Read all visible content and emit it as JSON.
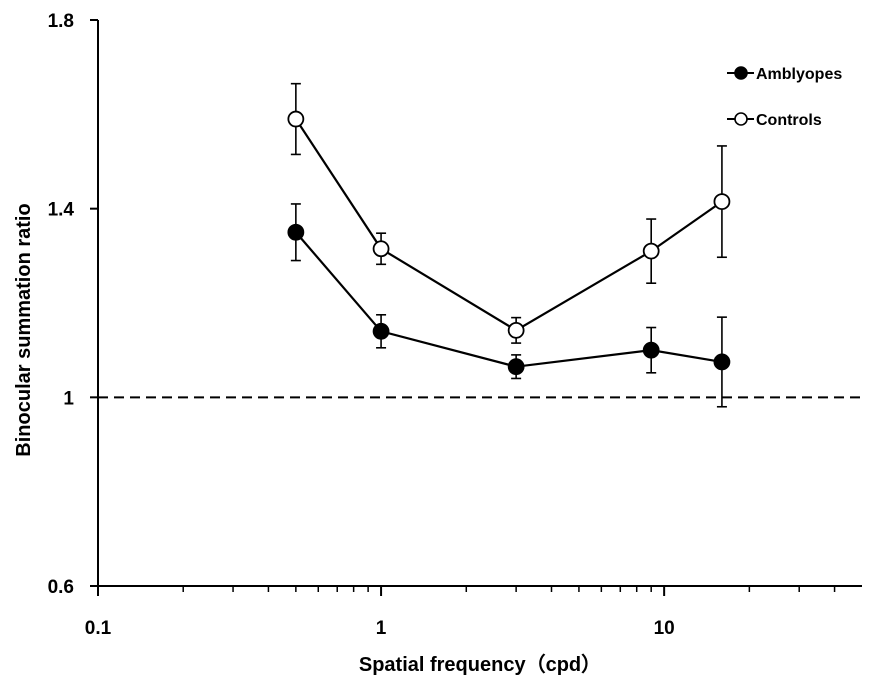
{
  "chart_data": {
    "type": "line",
    "title": "",
    "xlabel": "Spatial frequency（cpd）",
    "ylabel": "Binocular summation ratio",
    "xscale": "log",
    "xlim": [
      0.1,
      50
    ],
    "ylim": [
      0.6,
      1.8
    ],
    "xticks": [
      0.1,
      1,
      10
    ],
    "xtick_labels": [
      "0.1",
      "1",
      "10"
    ],
    "yticks": [
      0.6,
      1,
      1.4,
      1.8
    ],
    "ytick_labels": [
      "0.6",
      "1",
      "1.4",
      "1.8"
    ],
    "grid": false,
    "legend": "top-right",
    "reference_line": {
      "y": 1,
      "style": "dashed"
    },
    "x": [
      0.5,
      1,
      3,
      9,
      16
    ],
    "series": [
      {
        "name": "Amblyopes",
        "marker": "filled-circle",
        "values": [
          1.35,
          1.14,
          1.065,
          1.1,
          1.075
        ],
        "errors": [
          0.06,
          0.035,
          0.025,
          0.048,
          0.095
        ]
      },
      {
        "name": "Controls",
        "marker": "open-circle",
        "values": [
          1.59,
          1.315,
          1.142,
          1.31,
          1.415
        ],
        "errors": [
          0.075,
          0.033,
          0.027,
          0.068,
          0.118
        ]
      }
    ]
  }
}
